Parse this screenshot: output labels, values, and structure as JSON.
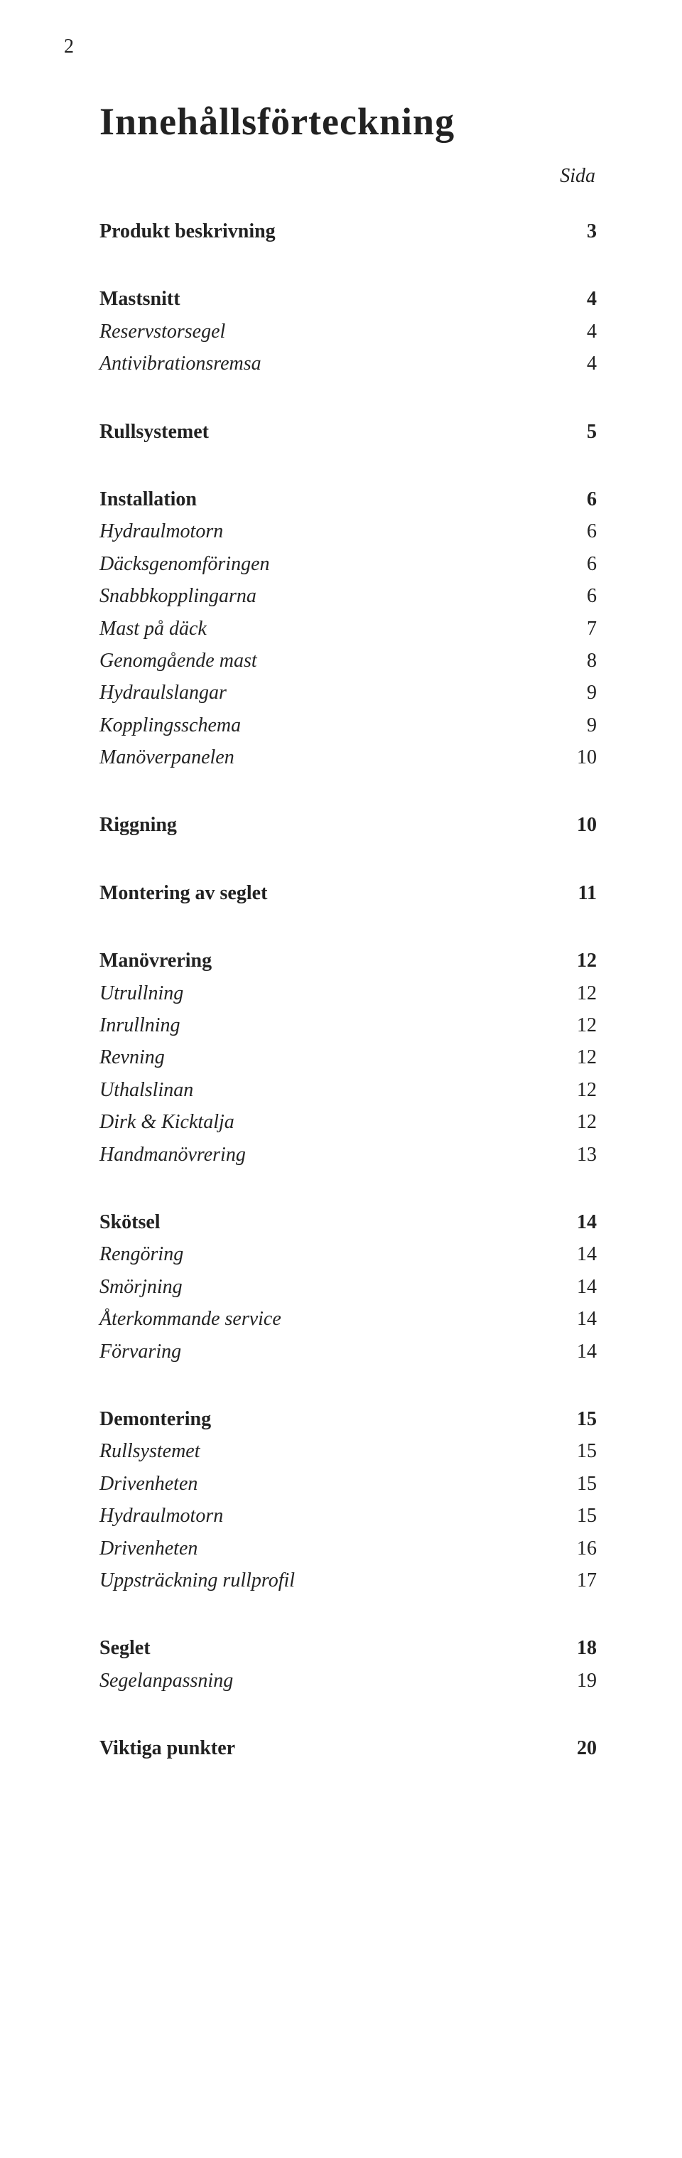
{
  "page_number": "2",
  "title": "Innehållsförteckning",
  "column_header": "Sida",
  "colors": {
    "text": "#222222",
    "background": "#ffffff"
  },
  "typography": {
    "title_fontsize_pt": 40,
    "body_fontsize_pt": 21,
    "font_family": "Georgia, Times New Roman, serif"
  },
  "toc_groups": [
    {
      "rows": [
        {
          "label": "Produkt beskrivning",
          "page": "3",
          "style": "bold"
        }
      ]
    },
    {
      "rows": [
        {
          "label": "Mastsnitt",
          "page": "4",
          "style": "bold"
        },
        {
          "label": "Reservstorsegel",
          "page": "4",
          "style": "italic"
        },
        {
          "label": "Antivibrationsremsa",
          "page": "4",
          "style": "italic"
        }
      ]
    },
    {
      "rows": [
        {
          "label": "Rullsystemet",
          "page": "5",
          "style": "bold"
        }
      ]
    },
    {
      "rows": [
        {
          "label": "Installation",
          "page": "6",
          "style": "bold"
        },
        {
          "label": "Hydraulmotorn",
          "page": "6",
          "style": "italic"
        },
        {
          "label": "Däcksgenomföringen",
          "page": "6",
          "style": "italic"
        },
        {
          "label": "Snabbkopplingarna",
          "page": "6",
          "style": "italic"
        },
        {
          "label": "Mast på däck",
          "page": "7",
          "style": "italic"
        },
        {
          "label": "Genomgående mast",
          "page": "8",
          "style": "italic"
        },
        {
          "label": "Hydraulslangar",
          "page": "9",
          "style": "italic"
        },
        {
          "label": "Kopplingsschema",
          "page": "9",
          "style": "italic"
        },
        {
          "label": "Manöverpanelen",
          "page": "10",
          "style": "italic"
        }
      ]
    },
    {
      "rows": [
        {
          "label": "Riggning",
          "page": "10",
          "style": "bold"
        }
      ]
    },
    {
      "rows": [
        {
          "label": "Montering av seglet",
          "page": "11",
          "style": "bold"
        }
      ]
    },
    {
      "rows": [
        {
          "label": "Manövrering",
          "page": "12",
          "style": "bold"
        },
        {
          "label": "Utrullning",
          "page": "12",
          "style": "italic"
        },
        {
          "label": "Inrullning",
          "page": "12",
          "style": "italic"
        },
        {
          "label": "Revning",
          "page": "12",
          "style": "italic"
        },
        {
          "label": "Uthalslinan",
          "page": "12",
          "style": "italic"
        },
        {
          "label": "Dirk & Kicktalja",
          "page": "12",
          "style": "italic"
        },
        {
          "label": "Handmanövrering",
          "page": "13",
          "style": "italic"
        }
      ]
    },
    {
      "rows": [
        {
          "label": "Skötsel",
          "page": "14",
          "style": "bold"
        },
        {
          "label": "Rengöring",
          "page": "14",
          "style": "italic"
        },
        {
          "label": "Smörjning",
          "page": "14",
          "style": "italic"
        },
        {
          "label": "Återkommande service",
          "page": "14",
          "style": "italic"
        },
        {
          "label": "Förvaring",
          "page": "14",
          "style": "italic"
        }
      ]
    },
    {
      "rows": [
        {
          "label": "Demontering",
          "page": "15",
          "style": "bold"
        },
        {
          "label": "Rullsystemet",
          "page": "15",
          "style": "italic"
        },
        {
          "label": "Drivenheten",
          "page": "15",
          "style": "italic"
        },
        {
          "label": "Hydraulmotorn",
          "page": "15",
          "style": "italic"
        },
        {
          "label": "Drivenheten",
          "page": "16",
          "style": "italic"
        },
        {
          "label": "Uppsträckning rullprofil",
          "page": "17",
          "style": "italic"
        }
      ]
    },
    {
      "rows": [
        {
          "label": "Seglet",
          "page": "18",
          "style": "bold"
        },
        {
          "label": "Segelanpassning",
          "page": "19",
          "style": "italic"
        }
      ]
    },
    {
      "rows": [
        {
          "label": "Viktiga punkter",
          "page": "20",
          "style": "bold"
        }
      ]
    }
  ]
}
